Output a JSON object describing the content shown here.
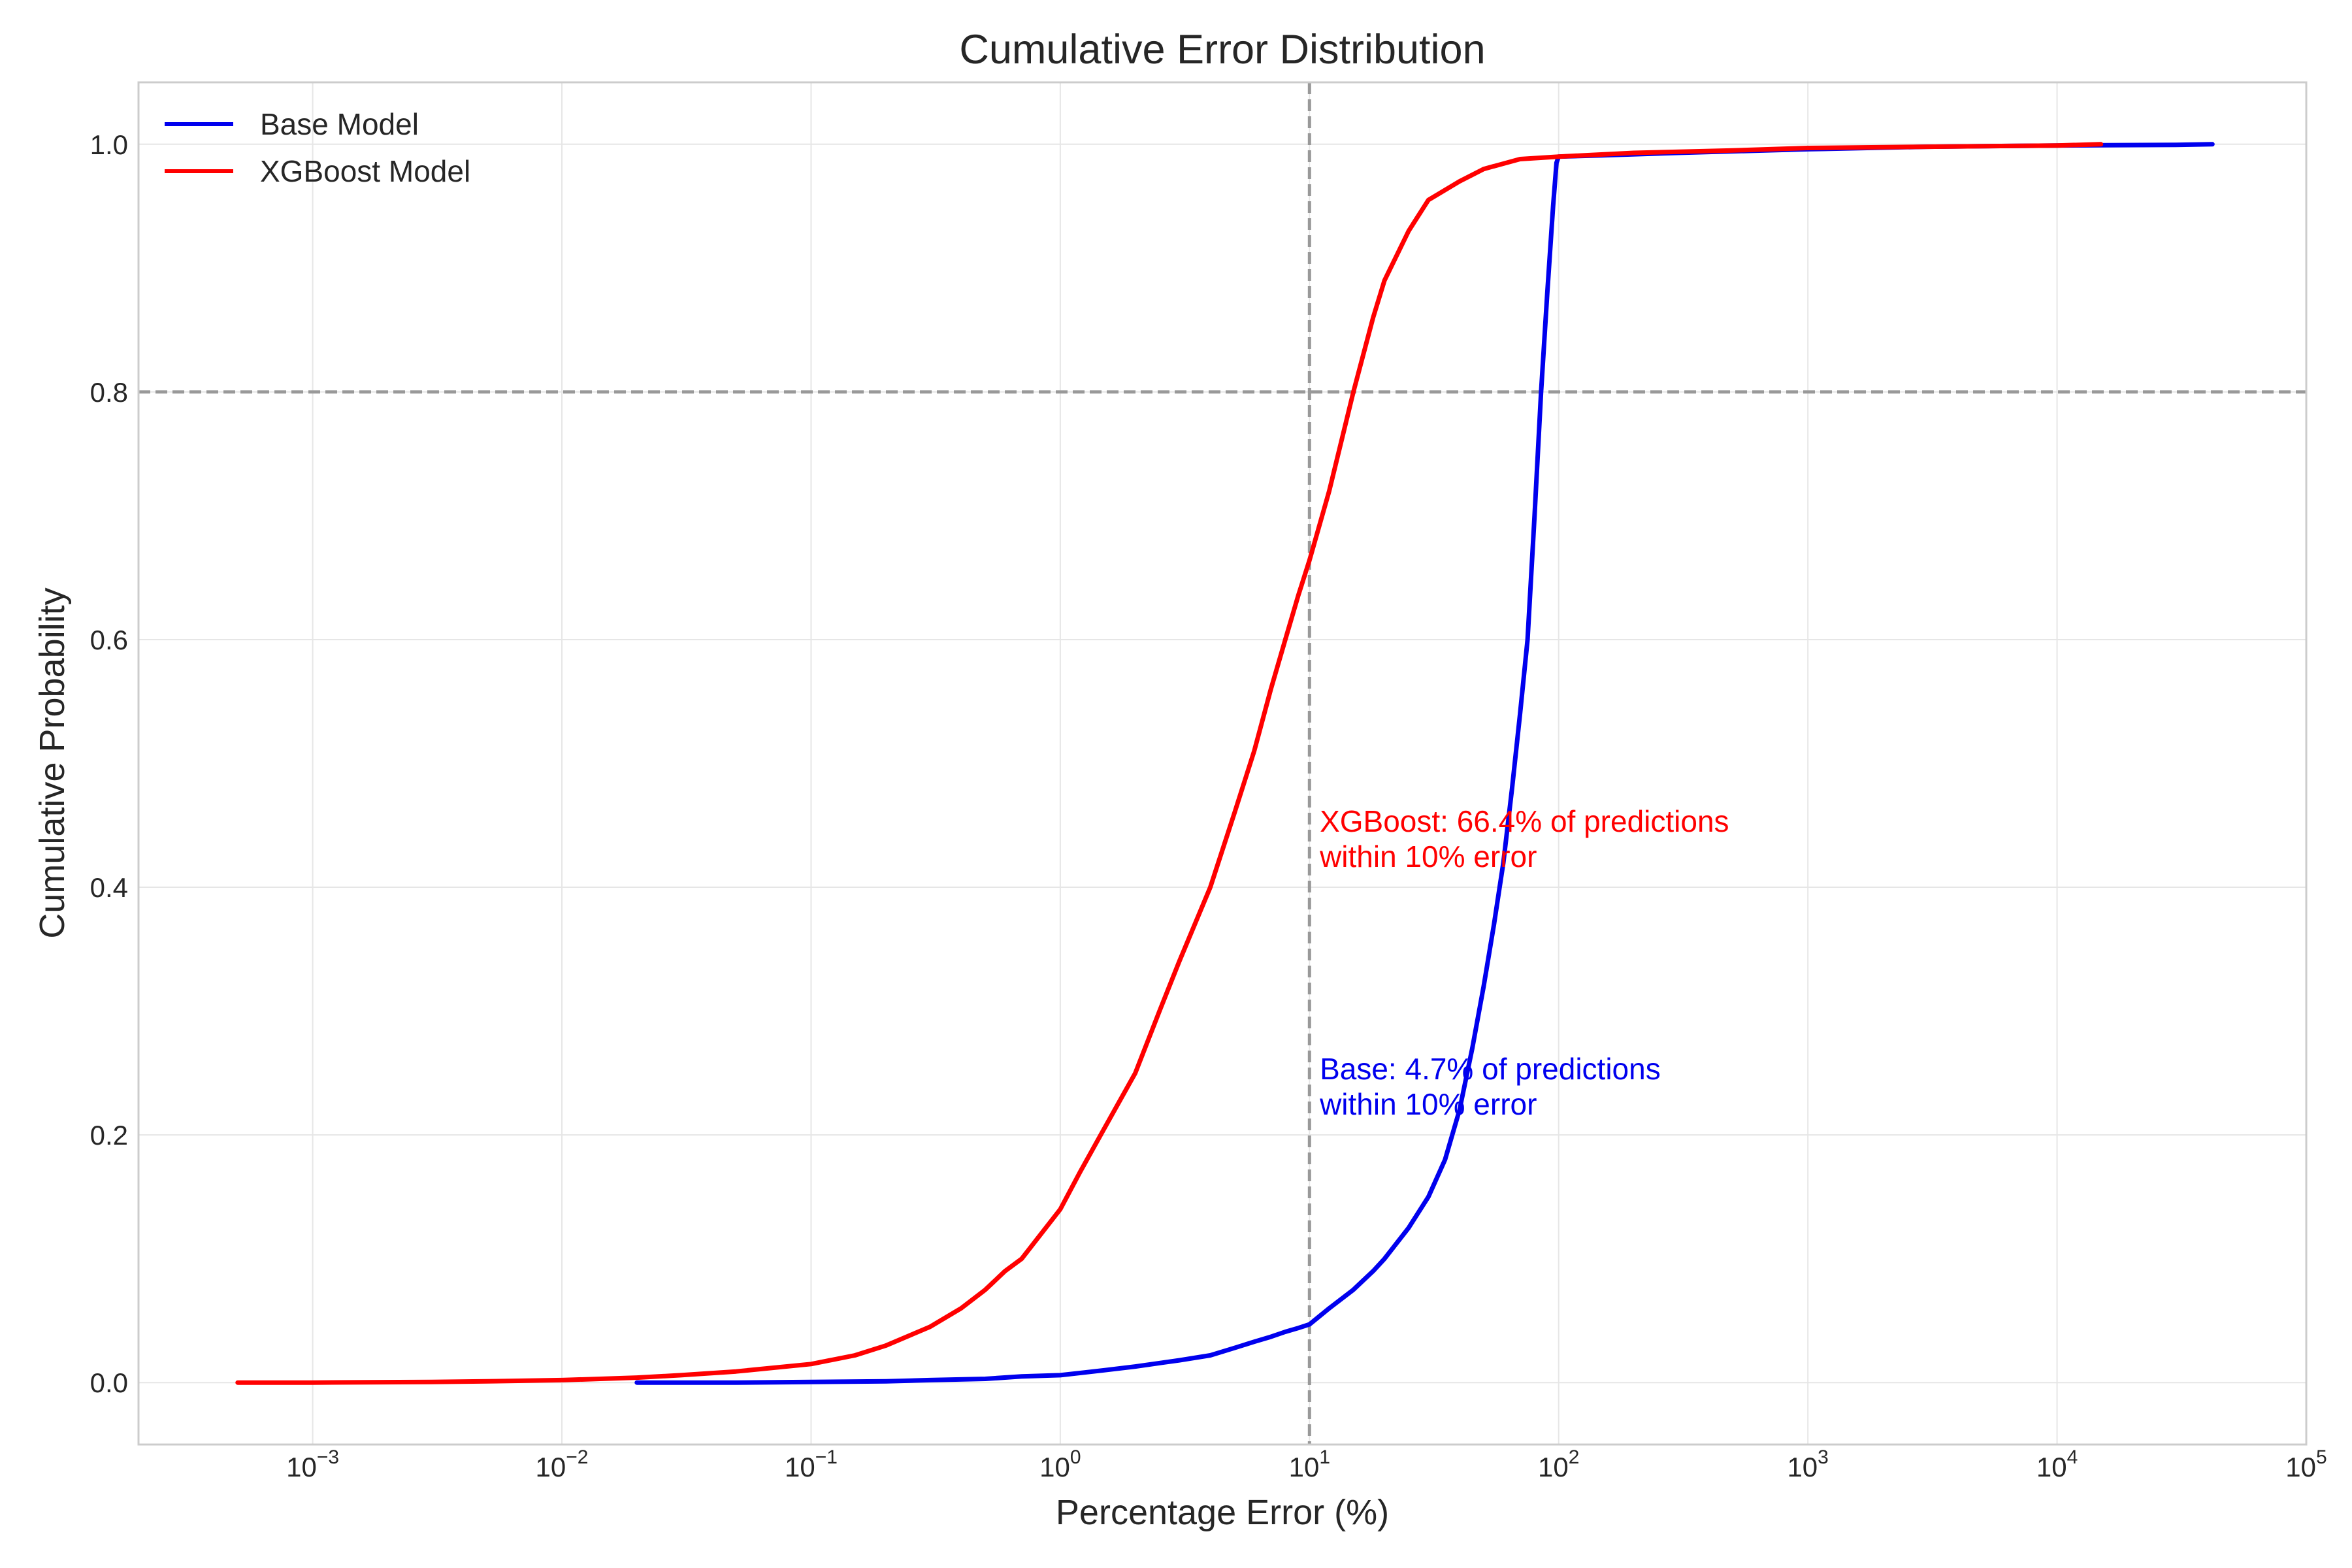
{
  "chart_data": {
    "type": "line",
    "title": "Cumulative Error Distribution",
    "xlabel": "Percentage Error (%)",
    "ylabel": "Cumulative Probability",
    "xscale": "log",
    "xlim": [
      0.0002,
      100000
    ],
    "ylim": [
      -0.05,
      1.05
    ],
    "x_ticks": [
      {
        "value": 0.001,
        "base": "10",
        "exp": "−3"
      },
      {
        "value": 0.01,
        "base": "10",
        "exp": "−2"
      },
      {
        "value": 0.1,
        "base": "10",
        "exp": "−1"
      },
      {
        "value": 1,
        "base": "10",
        "exp": "0"
      },
      {
        "value": 10,
        "base": "10",
        "exp": "1"
      },
      {
        "value": 100,
        "base": "10",
        "exp": "2"
      },
      {
        "value": 1000,
        "base": "10",
        "exp": "3"
      },
      {
        "value": 10000,
        "base": "10",
        "exp": "4"
      },
      {
        "value": 100000,
        "base": "10",
        "exp": "5"
      }
    ],
    "y_ticks": [
      {
        "value": 0.0,
        "label": "0.0"
      },
      {
        "value": 0.2,
        "label": "0.2"
      },
      {
        "value": 0.4,
        "label": "0.4"
      },
      {
        "value": 0.6,
        "label": "0.6"
      },
      {
        "value": 0.8,
        "label": "0.8"
      },
      {
        "value": 1.0,
        "label": "1.0"
      }
    ],
    "grid": true,
    "legend_position": "top-left",
    "reference_lines": [
      {
        "orientation": "vertical",
        "value": 10,
        "color": "#999999",
        "style": "dashed"
      },
      {
        "orientation": "horizontal",
        "value": 0.8,
        "color": "#999999",
        "style": "dashed"
      }
    ],
    "series": [
      {
        "name": "Base Model",
        "color": "#0000ee",
        "points": [
          [
            0.02,
            0.0
          ],
          [
            0.05,
            0.0
          ],
          [
            0.1,
            0.0005
          ],
          [
            0.2,
            0.001
          ],
          [
            0.3,
            0.002
          ],
          [
            0.5,
            0.003
          ],
          [
            0.7,
            0.005
          ],
          [
            1.0,
            0.006
          ],
          [
            1.5,
            0.01
          ],
          [
            2,
            0.013
          ],
          [
            3,
            0.018
          ],
          [
            4,
            0.022
          ],
          [
            5,
            0.028
          ],
          [
            6,
            0.033
          ],
          [
            7,
            0.037
          ],
          [
            8,
            0.041
          ],
          [
            9,
            0.044
          ],
          [
            10,
            0.047
          ],
          [
            12,
            0.06
          ],
          [
            15,
            0.075
          ],
          [
            18,
            0.09
          ],
          [
            20,
            0.1
          ],
          [
            25,
            0.125
          ],
          [
            30,
            0.15
          ],
          [
            35,
            0.18
          ],
          [
            40,
            0.22
          ],
          [
            45,
            0.27
          ],
          [
            50,
            0.32
          ],
          [
            55,
            0.37
          ],
          [
            60,
            0.42
          ],
          [
            65,
            0.48
          ],
          [
            70,
            0.54
          ],
          [
            75,
            0.6
          ],
          [
            80,
            0.7
          ],
          [
            85,
            0.8
          ],
          [
            90,
            0.88
          ],
          [
            95,
            0.95
          ],
          [
            98,
            0.985
          ],
          [
            100,
            0.99
          ],
          [
            150,
            0.991
          ],
          [
            300,
            0.993
          ],
          [
            1000,
            0.996
          ],
          [
            3000,
            0.998
          ],
          [
            10000,
            0.999
          ],
          [
            30000,
            0.9995
          ],
          [
            42000,
            1.0
          ]
        ]
      },
      {
        "name": "XGBoost Model",
        "color": "#ff0000",
        "points": [
          [
            0.0005,
            0.0
          ],
          [
            0.001,
            0.0
          ],
          [
            0.003,
            0.0005
          ],
          [
            0.005,
            0.001
          ],
          [
            0.01,
            0.002
          ],
          [
            0.02,
            0.004
          ],
          [
            0.03,
            0.006
          ],
          [
            0.05,
            0.009
          ],
          [
            0.1,
            0.015
          ],
          [
            0.15,
            0.022
          ],
          [
            0.2,
            0.03
          ],
          [
            0.3,
            0.045
          ],
          [
            0.4,
            0.06
          ],
          [
            0.5,
            0.075
          ],
          [
            0.6,
            0.09
          ],
          [
            0.7,
            0.1
          ],
          [
            0.8,
            0.115
          ],
          [
            1.0,
            0.14
          ],
          [
            1.2,
            0.17
          ],
          [
            1.5,
            0.205
          ],
          [
            2,
            0.25
          ],
          [
            2.5,
            0.3
          ],
          [
            3,
            0.34
          ],
          [
            4,
            0.4
          ],
          [
            5,
            0.46
          ],
          [
            6,
            0.51
          ],
          [
            7,
            0.56
          ],
          [
            8,
            0.6
          ],
          [
            9,
            0.635
          ],
          [
            10,
            0.664
          ],
          [
            12,
            0.72
          ],
          [
            15,
            0.8
          ],
          [
            18,
            0.86
          ],
          [
            20,
            0.89
          ],
          [
            25,
            0.93
          ],
          [
            30,
            0.955
          ],
          [
            40,
            0.97
          ],
          [
            50,
            0.98
          ],
          [
            70,
            0.988
          ],
          [
            100,
            0.99
          ],
          [
            200,
            0.993
          ],
          [
            500,
            0.995
          ],
          [
            1000,
            0.997
          ],
          [
            3000,
            0.998
          ],
          [
            10000,
            0.999
          ],
          [
            15000,
            1.0
          ]
        ]
      }
    ],
    "annotations": [
      {
        "x": 11,
        "y": 0.445,
        "lines": [
          "XGBoost: 66.4% of predictions",
          "within 10% error"
        ],
        "color": "#ff0000"
      },
      {
        "x": 11,
        "y": 0.245,
        "lines": [
          "Base: 4.7% of predictions",
          "within 10% error"
        ],
        "color": "#0000ee"
      }
    ]
  }
}
